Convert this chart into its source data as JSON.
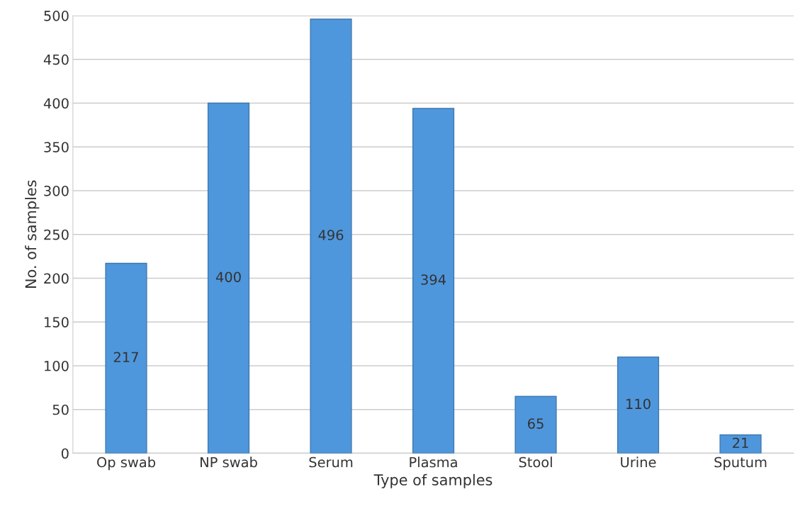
{
  "chart_data": {
    "type": "bar",
    "xlabel": "Type of samples",
    "ylabel": "No. of samples",
    "categories": [
      "Op swab",
      "NP swab",
      "Serum",
      "Plasma",
      "Stool",
      "Urine",
      "Sputum"
    ],
    "values": [
      217,
      400,
      496,
      394,
      65,
      110,
      21
    ],
    "color": "#4f97dc",
    "ylim": [
      0,
      500
    ],
    "yticks": [
      0,
      50,
      100,
      150,
      200,
      250,
      300,
      350,
      400,
      450,
      500
    ],
    "grid": "y",
    "data_labels": true
  }
}
